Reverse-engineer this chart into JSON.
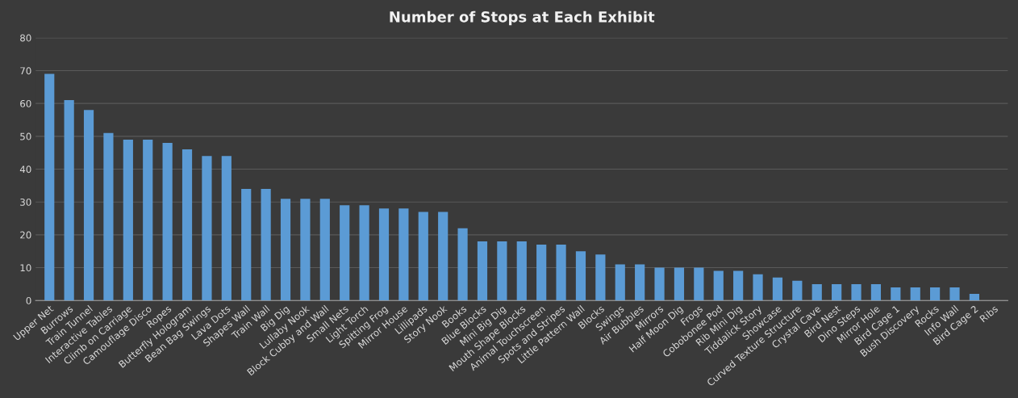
{
  "chart_data": {
    "type": "bar",
    "title": "Number of Stops at Each Exhibit",
    "categories": [
      "Upper Net",
      "Burrows",
      "Train Tunnel",
      "Interactive Tables",
      "Climb on Carriage",
      "Camouflage Disco",
      "Ropes",
      "Butterfly Hologram",
      "Bean Bag Swings",
      "Lava Dots",
      "Shapes Wall",
      "Train Wall",
      "Big Dig",
      "Lullaby Nook",
      "Block Cubby and Wall",
      "Small Nets",
      "Light Torch",
      "Spitting Frog",
      "Mirror House",
      "Lillipads",
      "Story Nook",
      "Books",
      "Blue Blocks",
      "Mini Big Dig",
      "Mouth Shape Blocks",
      "Animal Touchscreen",
      "Spots and Stripes",
      "Little Pattern Wall",
      "Blocks",
      "Swings",
      "Air Bubbles",
      "Mirrors",
      "Half Moon Dig",
      "Frogs",
      "Cobobonee Pod",
      "Rib Mini Dig",
      "Tiddalick Story",
      "Showcase",
      "Curved Texture Structure",
      "Crystal Cave",
      "Bird Nest",
      "Dino Steps",
      "Mirror Hole",
      "Bird Cage 1",
      "Bush Discovery",
      "Rocks",
      "Info Wall",
      "Bird Cage 2",
      "Ribs"
    ],
    "values": [
      69,
      61,
      58,
      51,
      49,
      49,
      48,
      46,
      44,
      44,
      34,
      34,
      31,
      31,
      31,
      29,
      29,
      28,
      28,
      27,
      27,
      22,
      18,
      18,
      18,
      17,
      17,
      15,
      14,
      11,
      11,
      10,
      10,
      10,
      9,
      9,
      8,
      7,
      6,
      5,
      5,
      5,
      5,
      4,
      4,
      4,
      4,
      2,
      0
    ],
    "color": "#5b9bd5",
    "ylim": [
      0,
      80
    ],
    "yticks": [
      0,
      10,
      20,
      30,
      40,
      50,
      60,
      70,
      80
    ],
    "grid": "y"
  }
}
